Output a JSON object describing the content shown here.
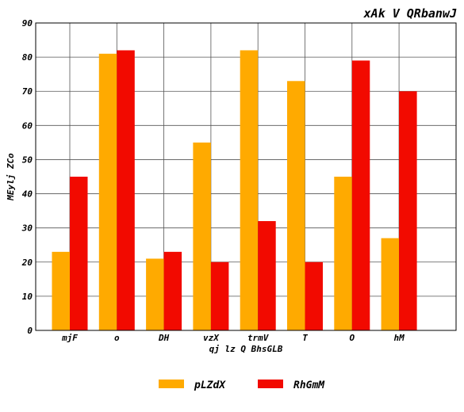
{
  "chart_data": {
    "type": "bar",
    "title": "xAk V QRbanwJ",
    "xlabel": "qj lz Q BhsGLB",
    "ylabel": "MEylj ZCo",
    "categories": [
      "mjF",
      "o",
      "DH",
      "vzX",
      "trmV",
      "T",
      "O",
      "hM"
    ],
    "ylim": [
      0,
      90
    ],
    "yticks": [
      "0",
      "10",
      "20",
      "30",
      "40",
      "50",
      "60",
      "70",
      "80",
      "90"
    ],
    "grid": true,
    "legend_position": "bottom-center",
    "series": [
      {
        "name": "pLZdX",
        "color": "#FFAA00",
        "values": [
          23,
          81,
          21,
          55,
          82,
          73,
          45,
          27
        ]
      },
      {
        "name": "RhGmM",
        "color": "#F20A00",
        "values": [
          45,
          82,
          23,
          20,
          32,
          20,
          79,
          70
        ]
      }
    ]
  }
}
